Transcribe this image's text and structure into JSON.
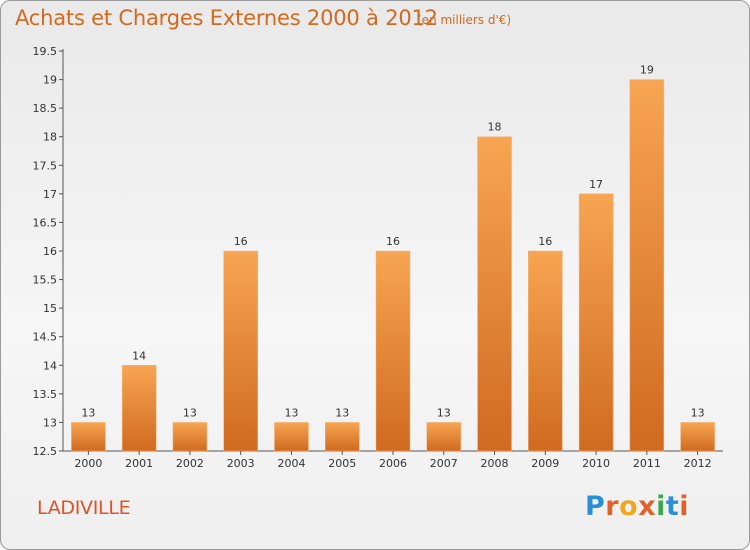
{
  "title": "Achats et Charges Externes 2000 à 2012",
  "subtitle": "(en milliers d'€)",
  "location": "LADIVILLE",
  "brand": {
    "letters": [
      "P",
      "r",
      "o",
      "x",
      "i",
      "t",
      "i"
    ],
    "colors": [
      "#2b8fd6",
      "#e4602a",
      "#f2a51f",
      "#e4602a",
      "#3aa84b",
      "#2b8fd6",
      "#e4602a"
    ]
  },
  "colors": {
    "bar_light": "#f7a552",
    "bar_dark": "#d06a20",
    "title": "#d06a20",
    "location": "#d9542a"
  },
  "chart_data": {
    "type": "bar",
    "title": "Achats et Charges Externes 2000 à 2012",
    "subtitle": "(en milliers d'€)",
    "categories": [
      "2000",
      "2001",
      "2002",
      "2003",
      "2004",
      "2005",
      "2006",
      "2007",
      "2008",
      "2009",
      "2010",
      "2011",
      "2012"
    ],
    "values": [
      13,
      14,
      13,
      16,
      13,
      13,
      16,
      13,
      18,
      16,
      17,
      19,
      13
    ],
    "ylim": [
      12.5,
      19.5
    ],
    "yticks": [
      "12.5",
      "13",
      "13.5",
      "14",
      "14.5",
      "15",
      "15.5",
      "16",
      "16.5",
      "17",
      "17.5",
      "18",
      "18.5",
      "19",
      "19.5"
    ],
    "grid": false,
    "legend": "none"
  }
}
